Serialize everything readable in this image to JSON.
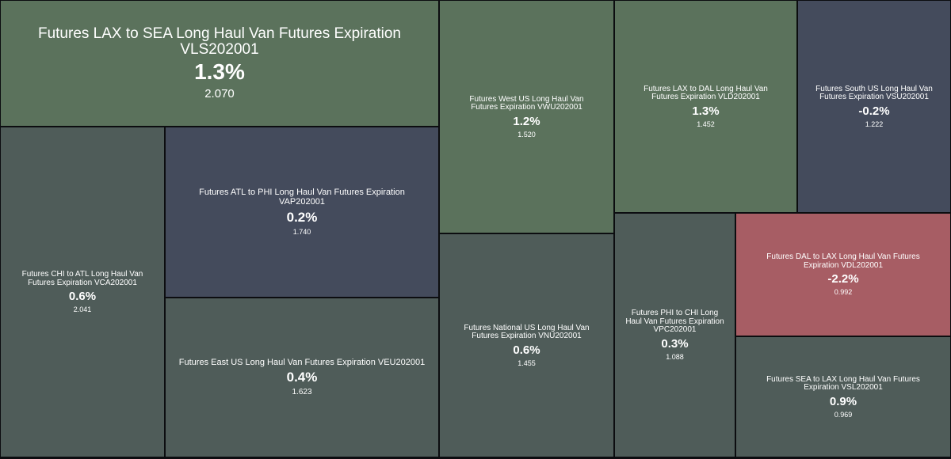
{
  "colors": {
    "background": "#0c0d10",
    "green": "#5b725c",
    "neutral": "#4f5c59",
    "slate": "#444b5c",
    "red": "#a75d64"
  },
  "chart_data": {
    "type": "treemap",
    "tiles": [
      {
        "id": "VLS",
        "name": "Futures LAX to SEA Long Haul Van Futures Expiration VLS202001",
        "change": "1.3%",
        "change_value": 1.3,
        "price": "2.070",
        "color": "green"
      },
      {
        "id": "VWU",
        "name": "Futures West US Long Haul Van Futures Expiration VWU202001",
        "change": "1.2%",
        "change_value": 1.2,
        "price": "1.520",
        "color": "green"
      },
      {
        "id": "VLD",
        "name": "Futures LAX to DAL Long Haul Van Futures Expiration VLD202001",
        "change": "1.3%",
        "change_value": 1.3,
        "price": "1.452",
        "color": "green"
      },
      {
        "id": "VSU",
        "name": "Futures South US Long Haul Van Futures Expiration VSU202001",
        "change": "-0.2%",
        "change_value": -0.2,
        "price": "1.222",
        "color": "slate"
      },
      {
        "id": "VCA",
        "name": "Futures CHI to ATL Long Haul Van Futures Expiration VCA202001",
        "change": "0.6%",
        "change_value": 0.6,
        "price": "2.041",
        "color": "neutral"
      },
      {
        "id": "VAP",
        "name": "Futures ATL to PHI Long Haul Van Futures Expiration VAP202001",
        "change": "0.2%",
        "change_value": 0.2,
        "price": "1.740",
        "color": "slate"
      },
      {
        "id": "VEU",
        "name": "Futures East US Long Haul Van Futures Expiration VEU202001",
        "change": "0.4%",
        "change_value": 0.4,
        "price": "1.623",
        "color": "neutral"
      },
      {
        "id": "VNU",
        "name": "Futures National US Long Haul Van Futures Expiration VNU202001",
        "change": "0.6%",
        "change_value": 0.6,
        "price": "1.455",
        "color": "neutral"
      },
      {
        "id": "VPC",
        "name": "Futures PHI to CHI Long Haul Van Futures Expiration VPC202001",
        "change": "0.3%",
        "change_value": 0.3,
        "price": "1.088",
        "color": "neutral"
      },
      {
        "id": "VDL",
        "name": "Futures DAL to LAX Long Haul Van Futures Expiration VDL202001",
        "change": "-2.2%",
        "change_value": -2.2,
        "price": "0.992",
        "color": "red"
      },
      {
        "id": "VSL",
        "name": "Futures SEA to LAX Long Haul Van Futures Expiration VSL202001",
        "change": "0.9%",
        "change_value": 0.9,
        "price": "0.969",
        "color": "neutral"
      }
    ]
  }
}
